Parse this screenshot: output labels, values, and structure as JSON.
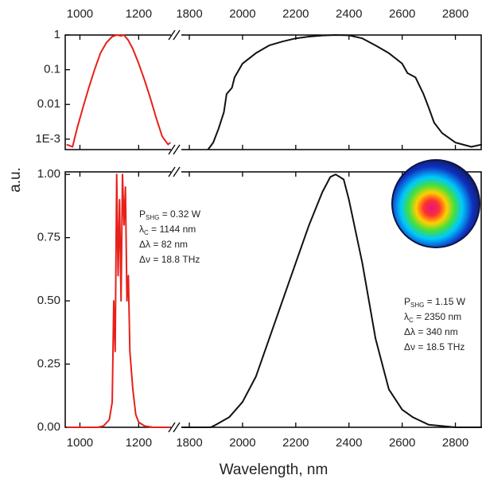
{
  "chart_data": [
    {
      "type": "line",
      "yscale": "log",
      "xtick_side": "top",
      "xlim": [
        950,
        2900
      ],
      "xbreak": [
        1310,
        1770
      ],
      "xticks": [
        1000,
        1200,
        1800,
        2000,
        2200,
        2400,
        2600,
        2800
      ],
      "ylim": [
        0.0005,
        1
      ],
      "yticks": [
        {
          "value": 0.001,
          "label": "1E-3"
        },
        0.01,
        0.1,
        1
      ],
      "series": [
        {
          "color": "#e8201a",
          "x": [
            955,
            975,
            990,
            1010,
            1030,
            1050,
            1070,
            1090,
            1110,
            1125,
            1140,
            1150,
            1165,
            1180,
            1200,
            1220,
            1240,
            1260,
            1280,
            1300,
            1308
          ],
          "values": [
            0.0007,
            0.0006,
            0.002,
            0.008,
            0.03,
            0.1,
            0.3,
            0.6,
            0.9,
            1,
            0.95,
            1,
            0.7,
            0.4,
            0.15,
            0.05,
            0.015,
            0.004,
            0.0012,
            0.0007,
            0.0008
          ]
        },
        {
          "color": "#111111",
          "x": [
            1870,
            1890,
            1910,
            1930,
            1940,
            1960,
            1970,
            2000,
            2050,
            2100,
            2150,
            2200,
            2250,
            2300,
            2350,
            2400,
            2450,
            2500,
            2550,
            2600,
            2620,
            2650,
            2680,
            2700,
            2720,
            2750,
            2800,
            2860,
            2900
          ],
          "values": [
            0.0005,
            0.0008,
            0.002,
            0.006,
            0.02,
            0.03,
            0.06,
            0.15,
            0.3,
            0.5,
            0.65,
            0.8,
            0.9,
            0.97,
            1,
            0.98,
            0.8,
            0.5,
            0.3,
            0.15,
            0.08,
            0.06,
            0.02,
            0.008,
            0.003,
            0.0015,
            0.0008,
            0.0006,
            0.0007
          ]
        }
      ]
    },
    {
      "type": "line",
      "yscale": "linear",
      "xtick_side": "bottom",
      "ylabel": "a.u.",
      "xlabel": "Wavelength, nm",
      "xlim": [
        950,
        2900
      ],
      "xbreak": [
        1310,
        1770
      ],
      "xticks": [
        1000,
        1200,
        1800,
        2000,
        2200,
        2400,
        2600,
        2800
      ],
      "ylim": [
        0,
        1.01
      ],
      "yticks": [
        {
          "value": 0,
          "label": "0.00"
        },
        {
          "value": 0.25,
          "label": "0.25"
        },
        {
          "value": 0.5,
          "label": "0.50"
        },
        {
          "value": 0.75,
          "label": "0.75"
        },
        {
          "value": 1,
          "label": "1.00"
        }
      ],
      "series": [
        {
          "color": "#e8201a",
          "x": [
            955,
            1060,
            1080,
            1100,
            1110,
            1115,
            1120,
            1125,
            1130,
            1135,
            1140,
            1145,
            1150,
            1155,
            1160,
            1165,
            1170,
            1180,
            1190,
            1200,
            1220,
            1250,
            1308
          ],
          "values": [
            0,
            0,
            0.005,
            0.03,
            0.1,
            0.5,
            0.3,
            1,
            0.6,
            0.9,
            0.5,
            1,
            0.8,
            0.95,
            0.5,
            0.6,
            0.3,
            0.15,
            0.05,
            0.02,
            0.005,
            0,
            0
          ]
        },
        {
          "color": "#111111",
          "x": [
            1770,
            1880,
            1900,
            1950,
            2000,
            2050,
            2100,
            2150,
            2200,
            2250,
            2300,
            2330,
            2350,
            2380,
            2400,
            2450,
            2500,
            2550,
            2600,
            2640,
            2660,
            2700,
            2750,
            2800,
            2900
          ],
          "values": [
            0,
            0,
            0.01,
            0.04,
            0.1,
            0.2,
            0.35,
            0.5,
            0.65,
            0.8,
            0.93,
            0.99,
            1,
            0.98,
            0.9,
            0.65,
            0.35,
            0.15,
            0.07,
            0.04,
            0.03,
            0.01,
            0.005,
            0,
            0
          ]
        }
      ],
      "annotations": [
        {
          "lines": [
            {
              "main": "P",
              "sub": "SHG",
              "rest": " = 0.32 W"
            },
            {
              "main": "λ",
              "sub": "C",
              "rest": " = 1144 nm"
            },
            {
              "main": "Δλ = 82 nm"
            },
            {
              "main": "Δν = 18.8 THz"
            }
          ]
        },
        {
          "lines": [
            {
              "main": "P",
              "sub": "SHG",
              "rest": " = 1.15 W"
            },
            {
              "main": "λ",
              "sub": "C",
              "rest": " = 2350 nm"
            },
            {
              "main": "Δλ = 340 nm"
            },
            {
              "main": "Δν = 18.5 THz"
            }
          ]
        }
      ]
    }
  ]
}
